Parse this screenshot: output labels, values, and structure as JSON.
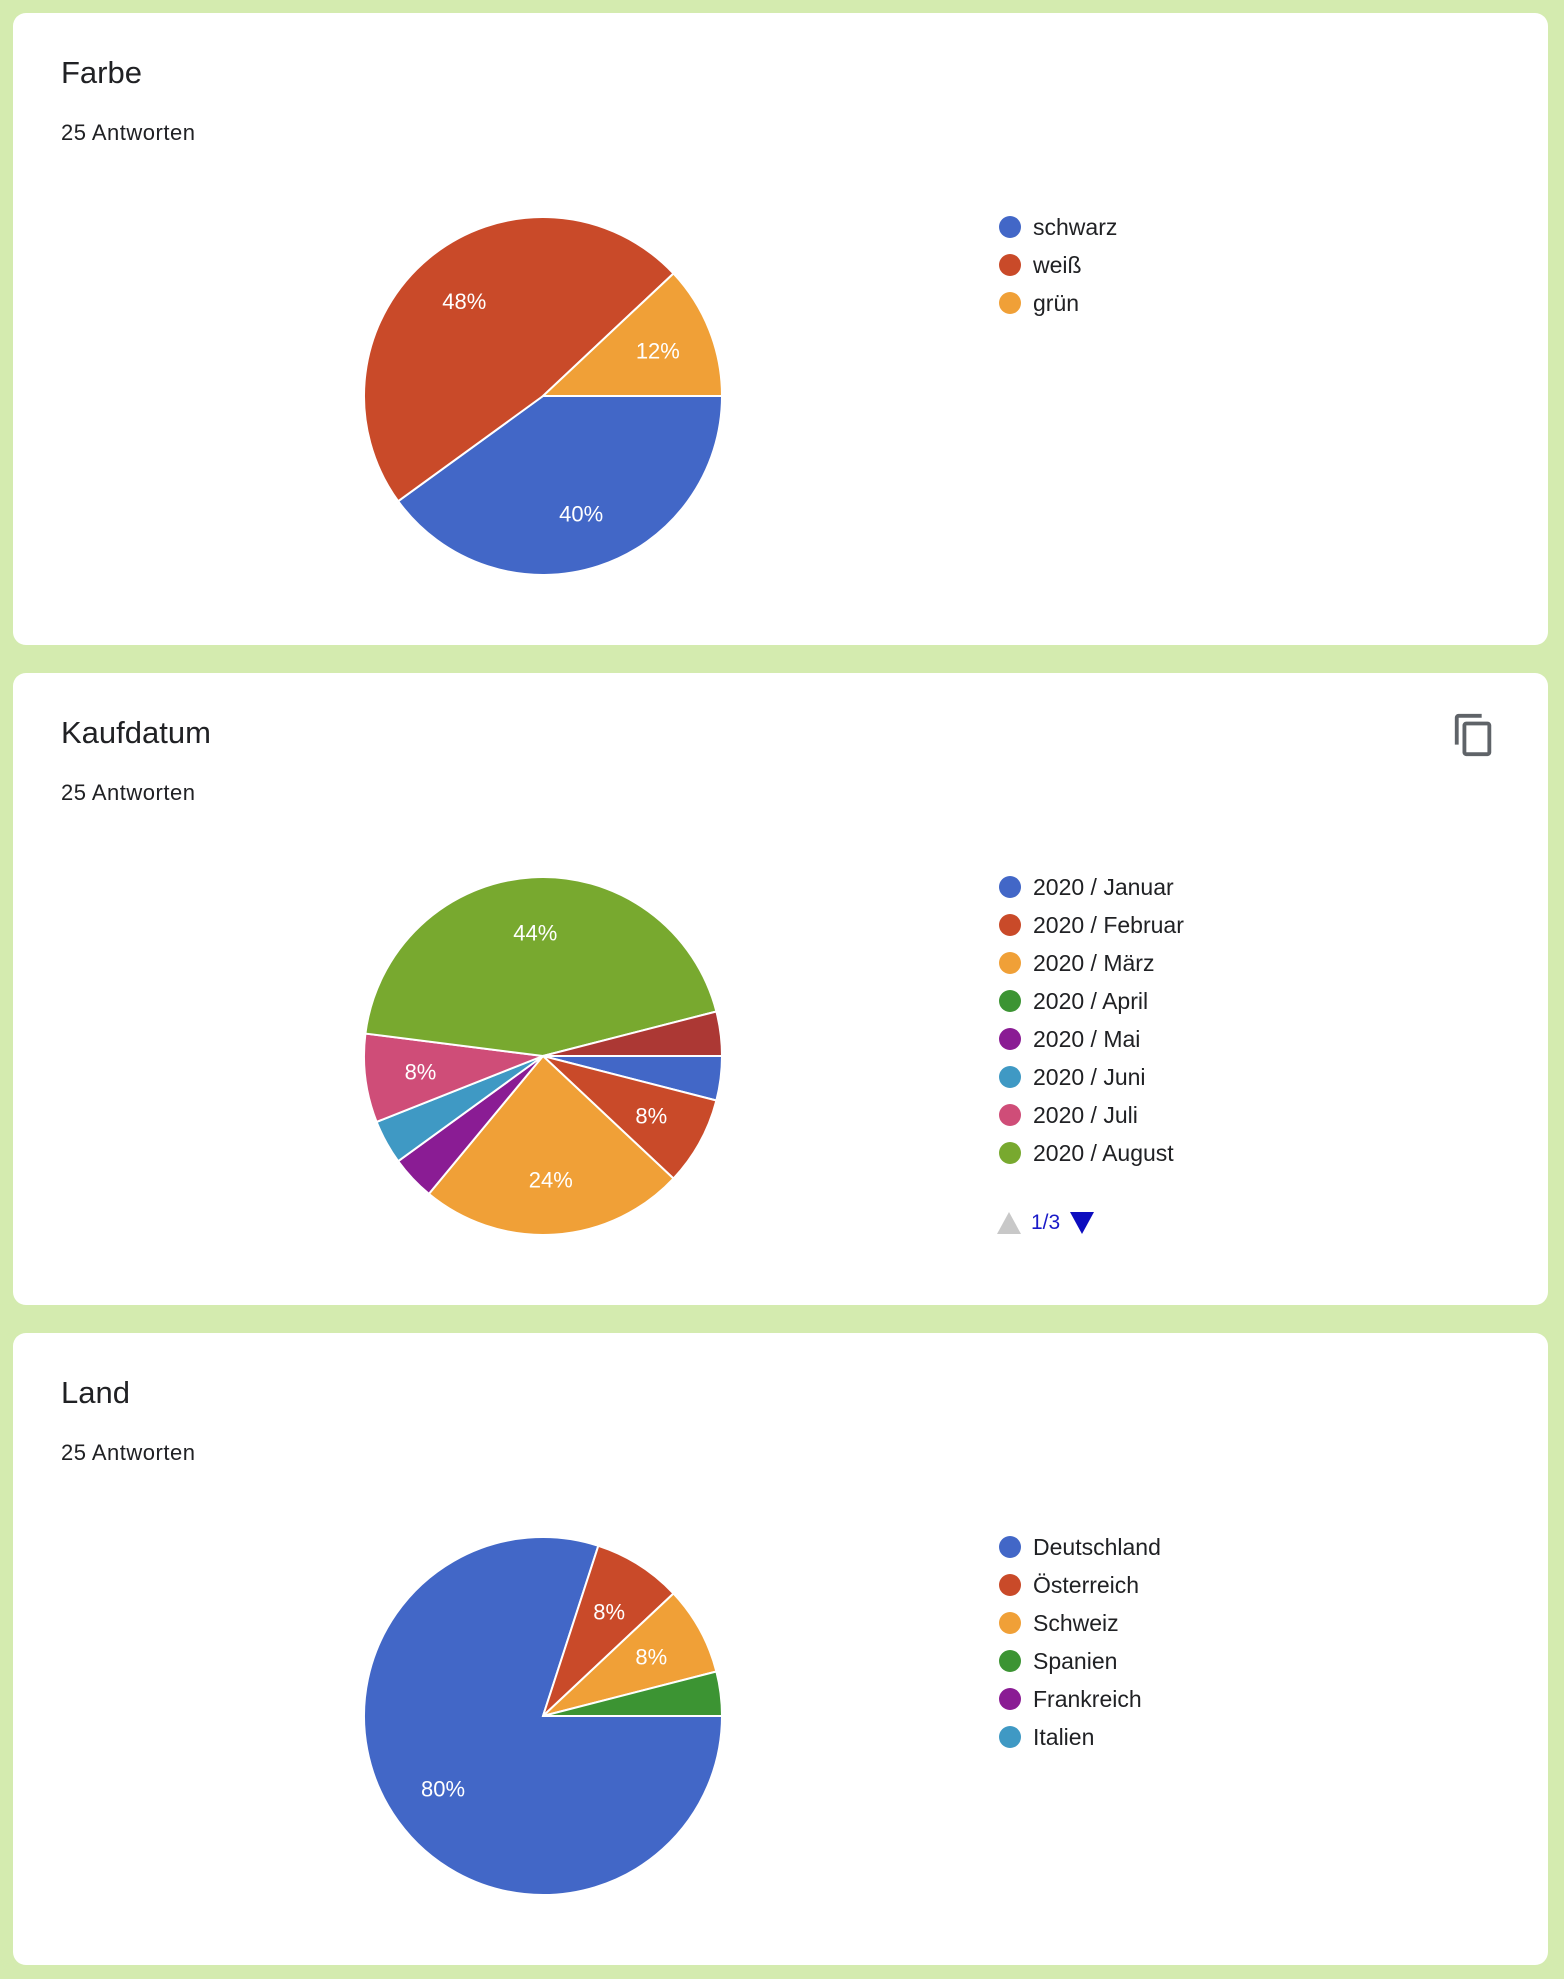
{
  "charts": [
    {
      "title": "Farbe",
      "responses": "25 Antworten",
      "has_copy": false
    },
    {
      "title": "Kaufdatum",
      "responses": "25 Antworten",
      "has_copy": true,
      "pager": {
        "label": "1/3"
      }
    },
    {
      "title": "Land",
      "responses": "25 Antworten",
      "has_copy": false
    }
  ],
  "chart_data": [
    {
      "type": "pie",
      "title": "Farbe",
      "categories": [
        "schwarz",
        "weiß",
        "grün"
      ],
      "values": [
        40,
        48,
        12
      ],
      "labels": [
        "40%",
        "48%",
        "12%"
      ],
      "colors": [
        "#4267c7",
        "#c94a29",
        "#f0a037"
      ],
      "legend": "right"
    },
    {
      "type": "pie",
      "title": "Kaufdatum",
      "categories": [
        "2020 / Januar",
        "2020 / Februar",
        "2020 / März",
        "2020 / April",
        "2020 / Mai",
        "2020 / Juni",
        "2020 / Juli",
        "2020 / August",
        "",
        ""
      ],
      "values": [
        4,
        8,
        24,
        0,
        4,
        4,
        8,
        44,
        4,
        0
      ],
      "labels": [
        "",
        "8%",
        "24%",
        "",
        "",
        "",
        "8%",
        "44%",
        "",
        ""
      ],
      "colors": [
        "#4267c7",
        "#c94a29",
        "#f0a037",
        "#3c9433",
        "#8a1c94",
        "#3f99c4",
        "#cf4d78",
        "#78a92f",
        "#ac3834",
        "#4267c7"
      ],
      "legend": "right",
      "legend_visible_count": 8
    },
    {
      "type": "pie",
      "title": "Land",
      "categories": [
        "Deutschland",
        "Österreich",
        "Schweiz",
        "Spanien",
        "Frankreich",
        "Italien"
      ],
      "values": [
        80,
        8,
        8,
        4,
        0,
        0
      ],
      "labels": [
        "80%",
        "8%",
        "8%",
        "",
        "",
        ""
      ],
      "colors": [
        "#4267c7",
        "#c94a29",
        "#f0a037",
        "#3c9433",
        "#8a1c94",
        "#3f99c4"
      ],
      "legend": "right"
    }
  ]
}
